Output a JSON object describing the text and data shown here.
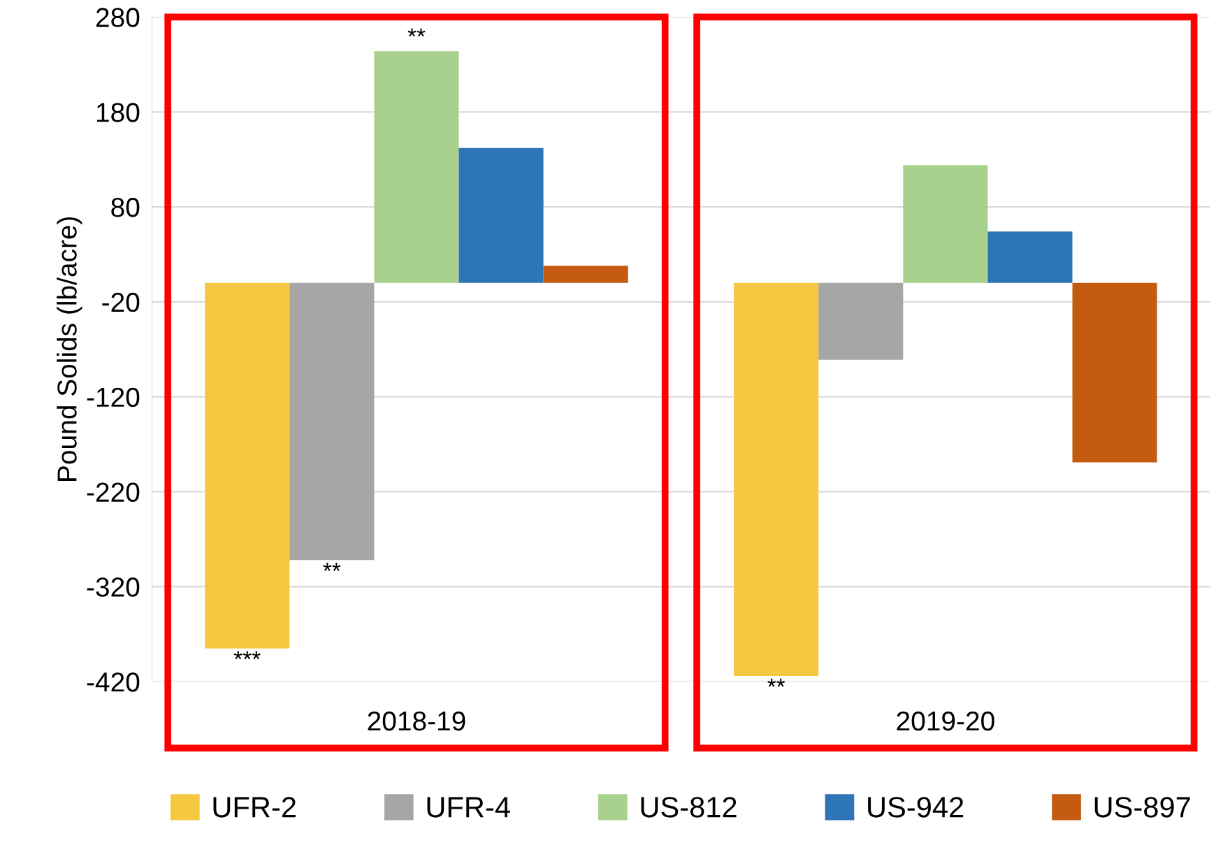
{
  "chart_data": {
    "type": "bar",
    "ylabel": "Pound Solids (lb/acre)",
    "categories": [
      "2018-19",
      "2019-20"
    ],
    "series": [
      {
        "name": "UFR-2",
        "color": "#f5c842",
        "values": [
          -385,
          -414
        ],
        "value_labels": [
          "***",
          "**"
        ]
      },
      {
        "name": "UFR-4",
        "color": "#a6a6a6",
        "values": [
          -292,
          -81
        ],
        "value_labels": [
          "**",
          null
        ]
      },
      {
        "name": "US-812",
        "color": "#a9d18e",
        "values": [
          244,
          124
        ],
        "value_labels": [
          "**",
          null
        ]
      },
      {
        "name": "US-942",
        "color": "#2e75b6",
        "values": [
          142,
          54
        ]
      },
      {
        "name": "US-897",
        "color": "#c55a11",
        "values": [
          18,
          -189
        ]
      }
    ],
    "ylim": [
      -420,
      280
    ],
    "yticks": [
      -420,
      -320,
      -220,
      -120,
      -20,
      80,
      180,
      280
    ],
    "grid": "y",
    "legend": "bottom"
  }
}
